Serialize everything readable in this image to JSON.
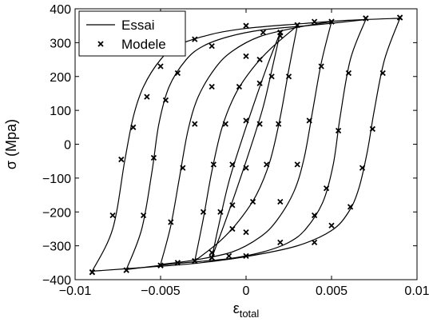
{
  "chart_data": {
    "type": "scatter",
    "title": "",
    "xlabel_main": "ε",
    "xlabel_sub": "total",
    "ylabel": "σ (Mpa)",
    "xlim": [
      -0.01,
      0.01
    ],
    "ylim": [
      -400,
      400
    ],
    "x_ticks": [
      -0.01,
      -0.005,
      0,
      0.005,
      0.01
    ],
    "x_tick_labels": [
      "−0.01",
      "−0.005",
      "0",
      "0.005",
      "0.01"
    ],
    "y_ticks": [
      -400,
      -300,
      -200,
      -100,
      0,
      100,
      200,
      300,
      400
    ],
    "y_tick_labels": [
      "−400",
      "−300",
      "−200",
      "−100",
      "0",
      "100",
      "200",
      "300",
      "400"
    ],
    "grid": false,
    "legend": {
      "position": "top-left",
      "entries": [
        "Essai",
        "Modele"
      ]
    },
    "series": [
      {
        "name": "Essai",
        "kind": "line",
        "loops": [
          {
            "amplitude": 0.009,
            "upper": [
              [
                -0.009,
                -375
              ],
              [
                -0.0078,
                -250
              ],
              [
                -0.0071,
                -50
              ],
              [
                -0.0066,
                80
              ],
              [
                -0.006,
                170
              ],
              [
                -0.005,
                250
              ],
              [
                -0.004,
                292
              ],
              [
                -0.002,
                325
              ],
              [
                0,
                342
              ],
              [
                0.003,
                355
              ],
              [
                0.006,
                366
              ],
              [
                0.009,
                372
              ]
            ],
            "lower": [
              [
                0.009,
                372
              ],
              [
                0.0081,
                250
              ],
              [
                0.0075,
                100
              ],
              [
                0.0071,
                -20
              ],
              [
                0.0066,
                -130
              ],
              [
                0.006,
                -200
              ],
              [
                0.005,
                -255
              ],
              [
                0.003,
                -300
              ],
              [
                0,
                -332
              ],
              [
                -0.003,
                -352
              ],
              [
                -0.006,
                -364
              ],
              [
                -0.009,
                -375
              ]
            ]
          },
          {
            "amplitude": 0.007,
            "upper": [
              [
                -0.007,
                -370
              ],
              [
                -0.0061,
                -250
              ],
              [
                -0.0055,
                -80
              ],
              [
                -0.0051,
                60
              ],
              [
                -0.0045,
                170
              ],
              [
                -0.0035,
                250
              ],
              [
                -0.0025,
                290
              ],
              [
                -0.001,
                318
              ],
              [
                0.001,
                338
              ],
              [
                0.004,
                352
              ],
              [
                0.007,
                368
              ]
            ],
            "lower": [
              [
                0.007,
                368
              ],
              [
                0.0061,
                250
              ],
              [
                0.0055,
                80
              ],
              [
                0.0051,
                -60
              ],
              [
                0.0045,
                -170
              ],
              [
                0.0035,
                -250
              ],
              [
                0.0025,
                -290
              ],
              [
                0.001,
                -318
              ],
              [
                -0.001,
                -338
              ],
              [
                -0.004,
                -352
              ],
              [
                -0.007,
                -370
              ]
            ]
          },
          {
            "amplitude": 0.005,
            "upper": [
              [
                -0.005,
                -355
              ],
              [
                -0.0044,
                -240
              ],
              [
                -0.0039,
                -100
              ],
              [
                -0.0034,
                40
              ],
              [
                -0.0028,
                140
              ],
              [
                -0.0018,
                225
              ],
              [
                -0.0008,
                275
              ],
              [
                0.0008,
                318
              ],
              [
                0.003,
                345
              ],
              [
                0.005,
                362
              ]
            ],
            "lower": [
              [
                0.005,
                362
              ],
              [
                0.0044,
                240
              ],
              [
                0.0039,
                100
              ],
              [
                0.0034,
                -40
              ],
              [
                0.0028,
                -140
              ],
              [
                0.0018,
                -225
              ],
              [
                0.0008,
                -275
              ],
              [
                -0.0008,
                -318
              ],
              [
                -0.003,
                -342
              ],
              [
                -0.005,
                -355
              ]
            ]
          },
          {
            "amplitude": 0.003,
            "upper": [
              [
                -0.003,
                -345
              ],
              [
                -0.0025,
                -220
              ],
              [
                -0.002,
                -80
              ],
              [
                -0.0014,
                50
              ],
              [
                -0.0006,
                150
              ],
              [
                0.0004,
                225
              ],
              [
                0.0015,
                285
              ],
              [
                0.003,
                350
              ]
            ],
            "lower": [
              [
                0.003,
                350
              ],
              [
                0.0025,
                220
              ],
              [
                0.002,
                80
              ],
              [
                0.0014,
                -50
              ],
              [
                0.0006,
                -150
              ],
              [
                -0.0004,
                -225
              ],
              [
                -0.0015,
                -285
              ],
              [
                -0.003,
                -345
              ]
            ]
          },
          {
            "amplitude": 0.002,
            "upper": [
              [
                -0.002,
                -335
              ],
              [
                -0.0016,
                -240
              ],
              [
                -0.001,
                -110
              ],
              [
                -0.0002,
                20
              ],
              [
                0.0006,
                140
              ],
              [
                0.0013,
                240
              ],
              [
                0.002,
                330
              ]
            ],
            "lower": [
              [
                0.002,
                330
              ],
              [
                0.0016,
                240
              ],
              [
                0.001,
                110
              ],
              [
                0.0002,
                -20
              ],
              [
                -0.0006,
                -140
              ],
              [
                -0.0013,
                -240
              ],
              [
                -0.002,
                -335
              ]
            ]
          }
        ]
      },
      {
        "name": "Modele",
        "kind": "markers",
        "marker": "x",
        "loops": [
          {
            "amplitude": 0.009,
            "upper": [
              [
                -0.009,
                -378
              ],
              [
                -0.0078,
                -210
              ],
              [
                -0.0073,
                -45
              ],
              [
                -0.0066,
                50
              ],
              [
                -0.0058,
                140
              ],
              [
                -0.005,
                230
              ],
              [
                -0.003,
                310
              ],
              [
                0,
                350
              ],
              [
                0.004,
                362
              ],
              [
                0.009,
                374
              ]
            ],
            "lower": [
              [
                0.009,
                374
              ],
              [
                0.008,
                210
              ],
              [
                0.0074,
                45
              ],
              [
                0.0068,
                -70
              ],
              [
                0.0061,
                -185
              ],
              [
                0.005,
                -240
              ],
              [
                0.004,
                -290
              ],
              [
                0,
                -330
              ],
              [
                -0.004,
                -350
              ],
              [
                -0.009,
                -378
              ]
            ]
          },
          {
            "amplitude": 0.007,
            "upper": [
              [
                -0.007,
                -372
              ],
              [
                -0.006,
                -210
              ],
              [
                -0.0054,
                -40
              ],
              [
                -0.0047,
                130
              ],
              [
                -0.004,
                210
              ],
              [
                -0.002,
                290
              ],
              [
                0.001,
                330
              ],
              [
                0.007,
                372
              ]
            ],
            "lower": [
              [
                0.007,
                372
              ],
              [
                0.006,
                210
              ],
              [
                0.0054,
                40
              ],
              [
                0.0047,
                -130
              ],
              [
                0.004,
                -210
              ],
              [
                0.002,
                -290
              ],
              [
                -0.001,
                -330
              ],
              [
                -0.007,
                -372
              ]
            ]
          },
          {
            "amplitude": 0.005,
            "upper": [
              [
                -0.005,
                -358
              ],
              [
                -0.0044,
                -230
              ],
              [
                -0.0037,
                -70
              ],
              [
                -0.003,
                60
              ],
              [
                -0.002,
                170
              ],
              [
                0,
                260
              ],
              [
                0.002,
                320
              ],
              [
                0.005,
                362
              ]
            ],
            "lower": [
              [
                0.005,
                362
              ],
              [
                0.0044,
                230
              ],
              [
                0.0037,
                70
              ],
              [
                0.003,
                -60
              ],
              [
                0.002,
                -170
              ],
              [
                0,
                -260
              ],
              [
                -0.002,
                -320
              ],
              [
                -0.005,
                -358
              ]
            ]
          },
          {
            "amplitude": 0.003,
            "upper": [
              [
                -0.003,
                -345
              ],
              [
                -0.0025,
                -200
              ],
              [
                -0.0019,
                -60
              ],
              [
                -0.0012,
                60
              ],
              [
                -0.0004,
                170
              ],
              [
                0.0008,
                250
              ],
              [
                0.003,
                352
              ]
            ],
            "lower": [
              [
                0.003,
                352
              ],
              [
                0.0025,
                200
              ],
              [
                0.0019,
                60
              ],
              [
                0.0012,
                -60
              ],
              [
                0.0004,
                -170
              ],
              [
                -0.0008,
                -250
              ],
              [
                -0.003,
                -345
              ]
            ]
          },
          {
            "amplitude": 0.002,
            "upper": [
              [
                -0.002,
                -335
              ],
              [
                -0.0015,
                -200
              ],
              [
                -0.0008,
                -60
              ],
              [
                0,
                70
              ],
              [
                0.0008,
                180
              ],
              [
                0.002,
                330
              ]
            ],
            "lower": [
              [
                0.002,
                330
              ],
              [
                0.0015,
                200
              ],
              [
                0.0008,
                60
              ],
              [
                0,
                -70
              ],
              [
                -0.0008,
                -180
              ],
              [
                -0.002,
                -335
              ]
            ]
          }
        ]
      }
    ]
  }
}
